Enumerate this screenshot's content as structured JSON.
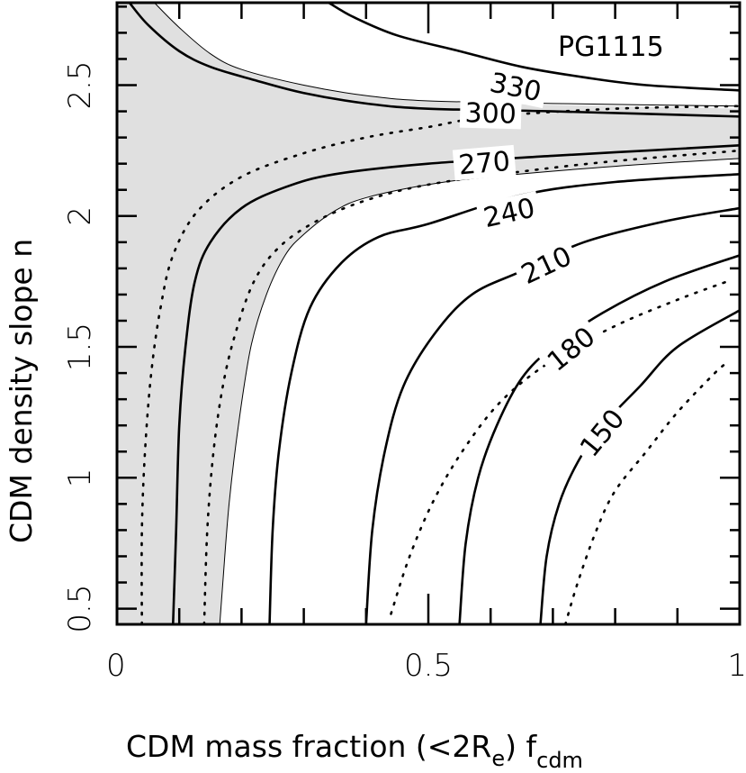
{
  "chart_data": {
    "type": "contour",
    "annotation": "PG1115",
    "xlabel": "CDM mass fraction (<2R",
    "xlabel_sub": "e",
    "xlabel_tail": ") f",
    "xlabel_sub2": "cdm",
    "ylabel": "CDM density slope n",
    "xlim": [
      0,
      1
    ],
    "ylim": [
      0.44,
      2.815
    ],
    "x_ticks_major": [
      0,
      0.5,
      1
    ],
    "x_tick_labels": [
      "0",
      "0.5",
      "1"
    ],
    "x_ticks_minor": [
      0.1,
      0.2,
      0.3,
      0.4,
      0.6,
      0.7,
      0.8,
      0.9
    ],
    "y_ticks_major": [
      0.5,
      1,
      1.5,
      2,
      2.5
    ],
    "y_tick_labels": [
      "0.5",
      "1",
      "1.5",
      "2",
      "2.5"
    ],
    "y_ticks_minor": [
      0.6,
      0.7,
      0.8,
      0.9,
      1.1,
      1.2,
      1.3,
      1.4,
      1.6,
      1.7,
      1.8,
      1.9,
      2.1,
      2.2,
      2.3,
      2.4,
      2.6,
      2.7,
      2.8
    ],
    "shaded_region": {
      "description": "allowed region (light gray)",
      "color": "#e0e0e0",
      "upper_band_outer": [
        [
          0.06,
          2.815
        ],
        [
          0.1,
          2.72
        ],
        [
          0.15,
          2.62
        ],
        [
          0.2,
          2.56
        ],
        [
          0.3,
          2.5
        ],
        [
          0.4,
          2.46
        ],
        [
          0.5,
          2.44
        ],
        [
          0.6,
          2.43
        ],
        [
          0.8,
          2.42
        ],
        [
          1.0,
          2.41
        ]
      ],
      "lower_boundary": [
        [
          1.0,
          2.22
        ],
        [
          0.8,
          2.19
        ],
        [
          0.6,
          2.15
        ],
        [
          0.5,
          2.12
        ],
        [
          0.4,
          2.07
        ],
        [
          0.35,
          2.02
        ],
        [
          0.3,
          1.93
        ],
        [
          0.27,
          1.85
        ],
        [
          0.24,
          1.7
        ],
        [
          0.215,
          1.5
        ],
        [
          0.195,
          1.2
        ],
        [
          0.18,
          0.9
        ],
        [
          0.17,
          0.6
        ],
        [
          0.165,
          0.44
        ]
      ]
    },
    "contours": [
      {
        "level": 330,
        "style": "solid",
        "label_pos": [
          0.64,
          2.49
        ],
        "points": [
          [
            0.34,
            2.815
          ],
          [
            0.38,
            2.76
          ],
          [
            0.45,
            2.69
          ],
          [
            0.55,
            2.63
          ],
          [
            0.65,
            2.57
          ],
          [
            0.75,
            2.53
          ],
          [
            0.85,
            2.5
          ],
          [
            1.0,
            2.48
          ]
        ]
      },
      {
        "level": 300,
        "style": "solid",
        "label_pos": [
          0.6,
          2.39
        ],
        "points": [
          [
            0.02,
            2.815
          ],
          [
            0.05,
            2.73
          ],
          [
            0.1,
            2.63
          ],
          [
            0.15,
            2.57
          ],
          [
            0.22,
            2.52
          ],
          [
            0.3,
            2.47
          ],
          [
            0.4,
            2.43
          ],
          [
            0.5,
            2.41
          ],
          [
            0.7,
            2.4
          ],
          [
            1.0,
            2.38
          ]
        ]
      },
      {
        "level": 270,
        "style": "solid",
        "label_pos": [
          0.59,
          2.2
        ],
        "points": [
          [
            0.09,
            0.44
          ],
          [
            0.095,
            0.8
          ],
          [
            0.1,
            1.2
          ],
          [
            0.11,
            1.5
          ],
          [
            0.125,
            1.75
          ],
          [
            0.15,
            1.9
          ],
          [
            0.2,
            2.03
          ],
          [
            0.27,
            2.11
          ],
          [
            0.35,
            2.16
          ],
          [
            0.5,
            2.2
          ],
          [
            0.7,
            2.23
          ],
          [
            0.85,
            2.25
          ],
          [
            1.0,
            2.27
          ]
        ]
      },
      {
        "level": 240,
        "style": "solid",
        "label_pos": [
          0.63,
          2.01
        ],
        "points": [
          [
            0.245,
            0.44
          ],
          [
            0.25,
            0.8
          ],
          [
            0.26,
            1.1
          ],
          [
            0.28,
            1.4
          ],
          [
            0.31,
            1.65
          ],
          [
            0.36,
            1.82
          ],
          [
            0.42,
            1.92
          ],
          [
            0.5,
            1.97
          ],
          [
            0.65,
            2.08
          ],
          [
            0.8,
            2.13
          ],
          [
            1.0,
            2.16
          ]
        ]
      },
      {
        "level": 210,
        "style": "solid",
        "label_pos": [
          0.69,
          1.81
        ],
        "points": [
          [
            0.4,
            0.44
          ],
          [
            0.41,
            0.8
          ],
          [
            0.43,
            1.1
          ],
          [
            0.46,
            1.35
          ],
          [
            0.51,
            1.55
          ],
          [
            0.57,
            1.7
          ],
          [
            0.65,
            1.79
          ],
          [
            0.75,
            1.9
          ],
          [
            0.88,
            1.98
          ],
          [
            1.0,
            2.03
          ]
        ]
      },
      {
        "level": 180,
        "style": "solid",
        "label_pos": [
          0.73,
          1.49
        ],
        "points": [
          [
            0.55,
            0.44
          ],
          [
            0.56,
            0.75
          ],
          [
            0.58,
            1.0
          ],
          [
            0.61,
            1.2
          ],
          [
            0.65,
            1.38
          ],
          [
            0.7,
            1.5
          ],
          [
            0.78,
            1.63
          ],
          [
            0.88,
            1.75
          ],
          [
            1.0,
            1.85
          ]
        ]
      },
      {
        "level": 150,
        "style": "solid",
        "label_pos": [
          0.78,
          1.17
        ],
        "points": [
          [
            0.68,
            0.44
          ],
          [
            0.69,
            0.7
          ],
          [
            0.71,
            0.9
          ],
          [
            0.74,
            1.06
          ],
          [
            0.78,
            1.2
          ],
          [
            0.84,
            1.35
          ],
          [
            0.9,
            1.5
          ],
          [
            1.0,
            1.64
          ]
        ]
      },
      {
        "level": null,
        "style": "dotted",
        "points": [
          [
            0.04,
            0.44
          ],
          [
            0.04,
            0.8
          ],
          [
            0.045,
            1.1
          ],
          [
            0.055,
            1.4
          ],
          [
            0.07,
            1.65
          ],
          [
            0.09,
            1.85
          ],
          [
            0.13,
            2.02
          ],
          [
            0.2,
            2.15
          ],
          [
            0.3,
            2.24
          ],
          [
            0.4,
            2.3
          ],
          [
            0.5,
            2.34
          ],
          [
            0.6,
            2.38
          ],
          [
            0.8,
            2.41
          ],
          [
            1.0,
            2.42
          ]
        ]
      },
      {
        "level": null,
        "style": "dotted",
        "points": [
          [
            0.14,
            0.44
          ],
          [
            0.145,
            0.8
          ],
          [
            0.155,
            1.1
          ],
          [
            0.17,
            1.35
          ],
          [
            0.19,
            1.55
          ],
          [
            0.22,
            1.75
          ],
          [
            0.26,
            1.88
          ],
          [
            0.32,
            1.98
          ],
          [
            0.4,
            2.06
          ],
          [
            0.5,
            2.12
          ],
          [
            0.65,
            2.17
          ],
          [
            0.8,
            2.21
          ],
          [
            1.0,
            2.25
          ]
        ]
      },
      {
        "level": null,
        "style": "dotted",
        "points": [
          [
            0.44,
            0.48
          ],
          [
            0.47,
            0.7
          ],
          [
            0.51,
            0.92
          ],
          [
            0.56,
            1.12
          ],
          [
            0.62,
            1.3
          ],
          [
            0.7,
            1.45
          ],
          [
            0.8,
            1.58
          ],
          [
            0.9,
            1.68
          ],
          [
            0.98,
            1.75
          ]
        ]
      },
      {
        "level": null,
        "style": "dotted",
        "points": [
          [
            0.72,
            0.44
          ],
          [
            0.74,
            0.6
          ],
          [
            0.77,
            0.8
          ],
          [
            0.8,
            0.95
          ],
          [
            0.85,
            1.1
          ],
          [
            0.9,
            1.25
          ],
          [
            0.96,
            1.4
          ],
          [
            0.98,
            1.44
          ]
        ]
      },
      {
        "level": null,
        "style": "thin",
        "points": [
          [
            0.06,
            2.815
          ],
          [
            0.1,
            2.72
          ],
          [
            0.15,
            2.62
          ],
          [
            0.2,
            2.56
          ],
          [
            0.3,
            2.5
          ],
          [
            0.4,
            2.46
          ],
          [
            0.5,
            2.44
          ],
          [
            0.7,
            2.43
          ],
          [
            1.0,
            2.42
          ]
        ]
      },
      {
        "level": null,
        "style": "thin",
        "points": [
          [
            0.165,
            0.44
          ],
          [
            0.17,
            0.6
          ],
          [
            0.18,
            0.9
          ],
          [
            0.195,
            1.2
          ],
          [
            0.215,
            1.5
          ],
          [
            0.24,
            1.7
          ],
          [
            0.27,
            1.85
          ],
          [
            0.3,
            1.93
          ],
          [
            0.35,
            2.02
          ],
          [
            0.4,
            2.07
          ],
          [
            0.5,
            2.12
          ],
          [
            0.6,
            2.15
          ],
          [
            0.8,
            2.19
          ],
          [
            1.0,
            2.22
          ]
        ]
      }
    ]
  }
}
